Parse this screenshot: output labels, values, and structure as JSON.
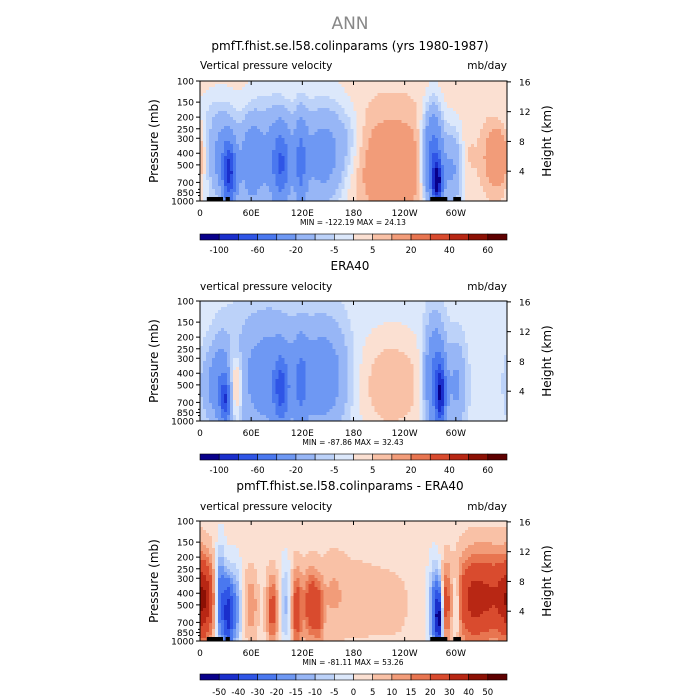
{
  "figure": {
    "suptitle": "ANN"
  },
  "chart_data": [
    {
      "type": "heatmap",
      "title": "pmfT.fhist.se.l58.colinparams (yrs 1980-1987)",
      "subtitle_left": "Vertical pressure velocity",
      "subtitle_right": "mb/day",
      "ylabel": "Pressure (mb)",
      "ylabel_right": "Height (km)",
      "x_ticks": [
        "0",
        "60E",
        "120E",
        "180",
        "120W",
        "60W"
      ],
      "x_tick_values": [
        0,
        60,
        120,
        180,
        240,
        300
      ],
      "xlim": [
        0,
        360
      ],
      "y_ticks": [
        "100",
        "150",
        "200",
        "250",
        "300",
        "400",
        "500",
        "700",
        "850",
        "1000"
      ],
      "y_tick_values": [
        100,
        150,
        200,
        250,
        300,
        400,
        500,
        700,
        850,
        1000
      ],
      "ylim": [
        1000,
        100
      ],
      "y_scale": "log",
      "right_ticks": [
        "16",
        "12",
        "8",
        "4"
      ],
      "right_tick_values": [
        16,
        12,
        8,
        4
      ],
      "stats": "MIN = -122.19   MAX =  24.13",
      "min": -122.19,
      "max": 24.13,
      "colorbar": {
        "levels": [
          -100,
          -80,
          -60,
          -40,
          -20,
          -10,
          -5,
          0,
          5,
          10,
          20,
          30,
          40,
          50,
          60
        ],
        "labels": [
          "-100",
          "-60",
          "-20",
          "-5",
          "5",
          "20",
          "40",
          "60"
        ],
        "label_values": [
          -100,
          -60,
          -20,
          -5,
          5,
          20,
          40,
          60
        ],
        "colors": [
          "#08008b",
          "#1a2fcc",
          "#2f55e6",
          "#4a78ef",
          "#6e98f3",
          "#97b6f6",
          "#bcd2f9",
          "#dce8fb",
          "#fbe0d2",
          "#f9c1a6",
          "#f29c79",
          "#e87550",
          "#d94b2e",
          "#b82714",
          "#8c1004",
          "#5e0000"
        ]
      },
      "fields": [
        {
          "xc": 5,
          "xw": 12,
          "pc": 170,
          "ph": 0.35,
          "v": -3
        },
        {
          "xc": 25,
          "xw": 14,
          "pc": 420,
          "ph": 0.9,
          "v": -28
        },
        {
          "xc": 34,
          "xw": 5,
          "pc": 600,
          "ph": 0.6,
          "v": -70
        },
        {
          "xc": 42,
          "xw": 4,
          "pc": 650,
          "ph": 0.5,
          "v": -12
        },
        {
          "xc": 60,
          "xw": 8,
          "pc": 480,
          "ph": 0.8,
          "v": -24
        },
        {
          "xc": 83,
          "xw": 22,
          "pc": 430,
          "ph": 1.1,
          "v": -25
        },
        {
          "xc": 95,
          "xw": 7,
          "pc": 500,
          "ph": 0.7,
          "v": -45
        },
        {
          "xc": 118,
          "xw": 5,
          "pc": 500,
          "ph": 0.9,
          "v": -35
        },
        {
          "xc": 145,
          "xw": 20,
          "pc": 420,
          "ph": 1.0,
          "v": -30
        },
        {
          "xc": 175,
          "xw": 12,
          "pc": 300,
          "ph": 0.6,
          "v": -6
        },
        {
          "xc": 225,
          "xw": 32,
          "pc": 520,
          "ph": 1.0,
          "v": 16
        },
        {
          "xc": 273,
          "xw": 8,
          "pc": 450,
          "ph": 0.9,
          "v": -60
        },
        {
          "xc": 278,
          "xw": 4,
          "pc": 700,
          "ph": 0.4,
          "v": -90
        },
        {
          "xc": 296,
          "xw": 9,
          "pc": 550,
          "ph": 0.8,
          "v": -25
        },
        {
          "xc": 313,
          "xw": 6,
          "pc": 450,
          "ph": 0.6,
          "v": 4
        },
        {
          "xc": 350,
          "xw": 12,
          "pc": 430,
          "ph": 0.6,
          "v": 18
        }
      ],
      "background": 3,
      "topography": [
        [
          8,
          27
        ],
        [
          30,
          35
        ],
        [
          270,
          290
        ],
        [
          297,
          306
        ]
      ]
    },
    {
      "type": "heatmap",
      "title": "ERA40",
      "subtitle_left": "vertical pressure velocity",
      "subtitle_right": "mb/day",
      "ylabel": "Pressure (mb)",
      "ylabel_right": "Height (km)",
      "x_ticks": [
        "0",
        "60E",
        "120E",
        "180",
        "120W",
        "60W"
      ],
      "x_tick_values": [
        0,
        60,
        120,
        180,
        240,
        300
      ],
      "xlim": [
        0,
        360
      ],
      "y_ticks": [
        "100",
        "150",
        "200",
        "250",
        "300",
        "400",
        "500",
        "700",
        "850",
        "1000"
      ],
      "y_tick_values": [
        100,
        150,
        200,
        250,
        300,
        400,
        500,
        700,
        850,
        1000
      ],
      "ylim": [
        1000,
        100
      ],
      "y_scale": "log",
      "right_ticks": [
        "16",
        "12",
        "8",
        "4"
      ],
      "right_tick_values": [
        16,
        12,
        8,
        4
      ],
      "stats": "MIN = -87.86   MAX =  32.43",
      "min": -87.86,
      "max": 32.43,
      "colorbar": {
        "levels": [
          -100,
          -80,
          -60,
          -40,
          -20,
          -10,
          -5,
          0,
          5,
          10,
          20,
          30,
          40,
          50,
          60
        ],
        "labels": [
          "-100",
          "-60",
          "-20",
          "-5",
          "5",
          "20",
          "40",
          "60"
        ],
        "label_values": [
          -100,
          -60,
          -20,
          -5,
          5,
          20,
          40,
          60
        ],
        "colors": [
          "#08008b",
          "#1a2fcc",
          "#2f55e6",
          "#4a78ef",
          "#6e98f3",
          "#97b6f6",
          "#bcd2f9",
          "#dce8fb",
          "#fbe0d2",
          "#f9c1a6",
          "#f29c79",
          "#e87550",
          "#d94b2e",
          "#b82714",
          "#8c1004",
          "#5e0000"
        ]
      },
      "fields": [
        {
          "xc": 10,
          "xw": 8,
          "pc": 500,
          "ph": 0.6,
          "v": -12
        },
        {
          "xc": 25,
          "xw": 8,
          "pc": 500,
          "ph": 0.8,
          "v": -30
        },
        {
          "xc": 30,
          "xw": 4,
          "pc": 680,
          "ph": 0.4,
          "v": -55
        },
        {
          "xc": 42,
          "xw": 6,
          "pc": 500,
          "ph": 0.6,
          "v": 22
        },
        {
          "xc": 80,
          "xw": 28,
          "pc": 430,
          "ph": 1.15,
          "v": -26
        },
        {
          "xc": 95,
          "xw": 6,
          "pc": 550,
          "ph": 0.6,
          "v": -50
        },
        {
          "xc": 118,
          "xw": 5,
          "pc": 500,
          "ph": 0.8,
          "v": -28
        },
        {
          "xc": 145,
          "xw": 20,
          "pc": 430,
          "ph": 1.0,
          "v": -28
        },
        {
          "xc": 225,
          "xw": 30,
          "pc": 500,
          "ph": 1.0,
          "v": 13
        },
        {
          "xc": 275,
          "xw": 8,
          "pc": 450,
          "ph": 1.0,
          "v": -45
        },
        {
          "xc": 282,
          "xw": 4,
          "pc": 600,
          "ph": 0.6,
          "v": -75
        },
        {
          "xc": 300,
          "xw": 8,
          "pc": 500,
          "ph": 0.8,
          "v": -20
        }
      ],
      "background": -3,
      "topography": []
    },
    {
      "type": "heatmap",
      "title": "pmfT.fhist.se.l58.colinparams - ERA40",
      "subtitle_left": "vertical pressure velocity",
      "subtitle_right": "mb/day",
      "ylabel": "Pressure (mb)",
      "ylabel_right": "Height (km)",
      "x_ticks": [
        "0",
        "60E",
        "120E",
        "180",
        "120W",
        "60W"
      ],
      "x_tick_values": [
        0,
        60,
        120,
        180,
        240,
        300
      ],
      "xlim": [
        0,
        360
      ],
      "y_ticks": [
        "100",
        "150",
        "200",
        "250",
        "300",
        "400",
        "500",
        "700",
        "850",
        "1000"
      ],
      "y_tick_values": [
        100,
        150,
        200,
        250,
        300,
        400,
        500,
        700,
        850,
        1000
      ],
      "ylim": [
        1000,
        100
      ],
      "y_scale": "log",
      "right_ticks": [
        "16",
        "12",
        "8",
        "4"
      ],
      "right_tick_values": [
        16,
        12,
        8,
        4
      ],
      "stats": "MIN = -81.11   MAX =  53.26",
      "min": -81.11,
      "max": 53.26,
      "colorbar": {
        "levels": [
          -50,
          -40,
          -30,
          -20,
          -15,
          -10,
          -5,
          0,
          5,
          10,
          15,
          20,
          30,
          40,
          50
        ],
        "labels": [
          "-50",
          "-40",
          "-30",
          "-20",
          "-15",
          "-10",
          "-5",
          "0",
          "5",
          "10",
          "15",
          "20",
          "30",
          "40",
          "50"
        ],
        "label_values": [
          -50,
          -40,
          -30,
          -20,
          -15,
          -10,
          -5,
          0,
          5,
          10,
          15,
          20,
          30,
          40,
          50
        ],
        "colors": [
          "#08008b",
          "#1a2fcc",
          "#2f55e6",
          "#4a78ef",
          "#6e98f3",
          "#97b6f6",
          "#bcd2f9",
          "#dce8fb",
          "#fbe0d2",
          "#f9c1a6",
          "#f29c79",
          "#e87550",
          "#d94b2e",
          "#b82714",
          "#8c1004",
          "#5e0000"
        ]
      },
      "fields": [
        {
          "xc": 5,
          "xw": 9,
          "pc": 450,
          "ph": 0.8,
          "v": 32
        },
        {
          "xc": 24,
          "xw": 4,
          "pc": 450,
          "ph": 0.9,
          "v": -32
        },
        {
          "xc": 33,
          "xw": 4,
          "pc": 600,
          "ph": 0.7,
          "v": -45
        },
        {
          "xc": 42,
          "xw": 5,
          "pc": 550,
          "ph": 0.8,
          "v": -20
        },
        {
          "xc": 60,
          "xw": 6,
          "pc": 500,
          "ph": 0.7,
          "v": 12
        },
        {
          "xc": 85,
          "xw": 5,
          "pc": 550,
          "ph": 0.7,
          "v": 22
        },
        {
          "xc": 100,
          "xw": 5,
          "pc": 500,
          "ph": 0.8,
          "v": -14
        },
        {
          "xc": 113,
          "xw": 5,
          "pc": 550,
          "ph": 0.8,
          "v": 24
        },
        {
          "xc": 130,
          "xw": 6,
          "pc": 500,
          "ph": 0.7,
          "v": 25
        },
        {
          "xc": 140,
          "xw": 4,
          "pc": 600,
          "ph": 0.6,
          "v": 14
        },
        {
          "xc": 155,
          "xw": 12,
          "pc": 400,
          "ph": 0.8,
          "v": 7
        },
        {
          "xc": 190,
          "xw": 25,
          "pc": 450,
          "ph": 1.0,
          "v": 5
        },
        {
          "xc": 230,
          "xw": 14,
          "pc": 500,
          "ph": 0.7,
          "v": 4
        },
        {
          "xc": 275,
          "xw": 5,
          "pc": 550,
          "ph": 0.8,
          "v": -28
        },
        {
          "xc": 280,
          "xw": 3,
          "pc": 650,
          "ph": 0.6,
          "v": -45
        },
        {
          "xc": 288,
          "xw": 4,
          "pc": 500,
          "ph": 0.8,
          "v": 20
        },
        {
          "xc": 300,
          "xw": 3,
          "pc": 500,
          "ph": 0.6,
          "v": -15
        },
        {
          "xc": 318,
          "xw": 14,
          "pc": 450,
          "ph": 0.9,
          "v": 28
        },
        {
          "xc": 345,
          "xw": 14,
          "pc": 420,
          "ph": 0.9,
          "v": 22
        }
      ],
      "background": 2,
      "topography": [
        [
          8,
          27
        ],
        [
          30,
          35
        ],
        [
          270,
          290
        ],
        [
          297,
          306
        ]
      ]
    }
  ]
}
